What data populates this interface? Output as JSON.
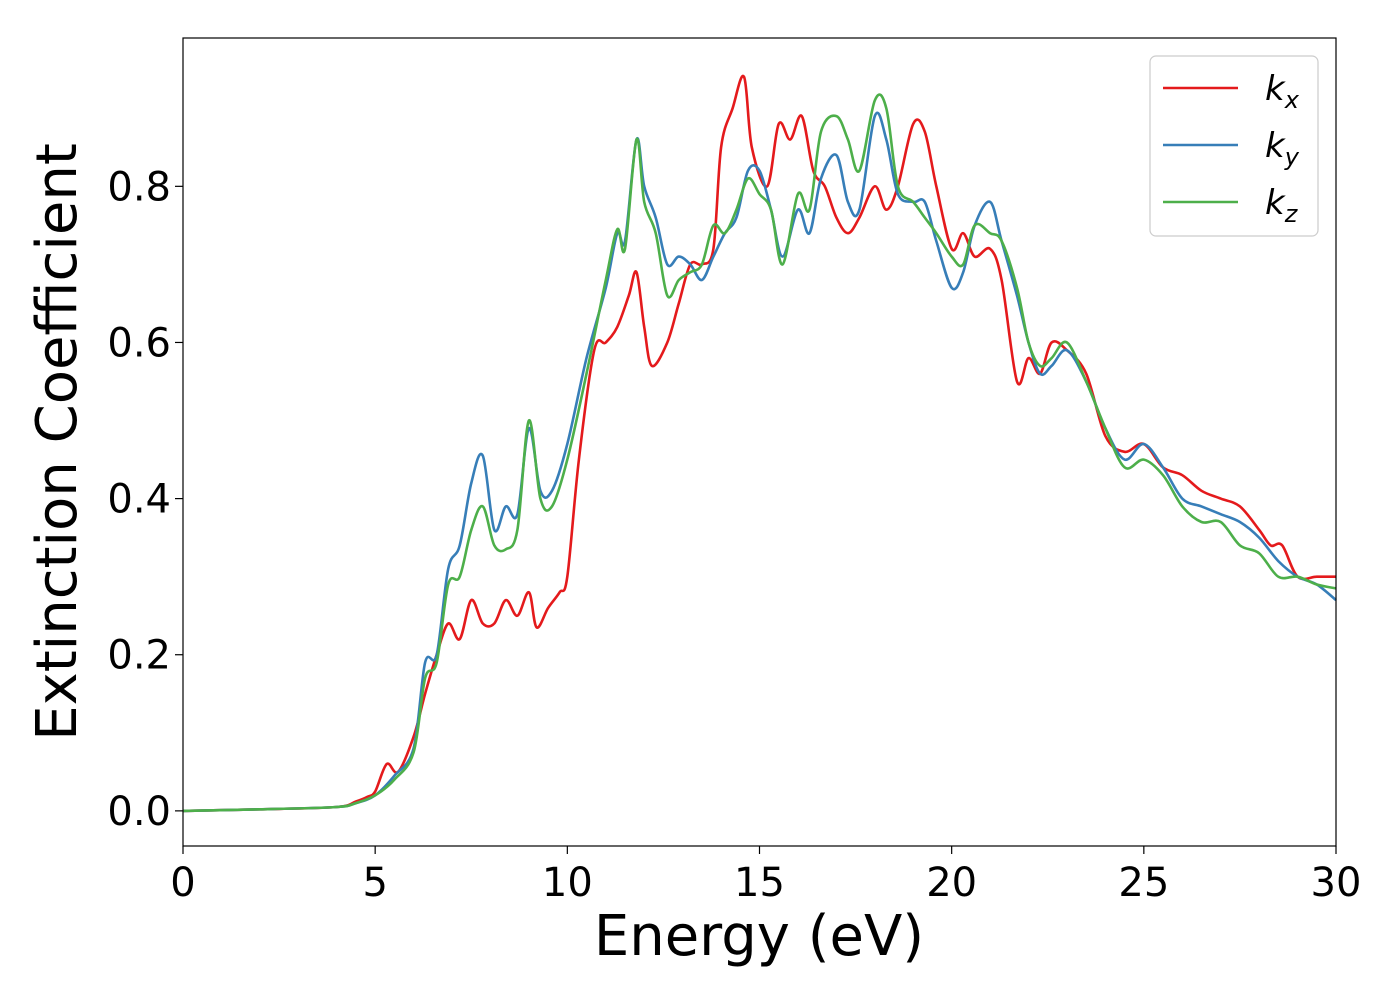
{
  "chart_data": {
    "type": "line",
    "xlabel": "Energy (eV)",
    "ylabel": "Extinction Coefficient",
    "xlim": [
      0,
      30
    ],
    "ylim": [
      -0.045,
      0.99
    ],
    "xticks": [
      "0",
      "5",
      "10",
      "15",
      "20",
      "25",
      "30"
    ],
    "yticks": [
      "0.0",
      "0.2",
      "0.4",
      "0.6",
      "0.8"
    ],
    "grid": false,
    "legend_position": "top-right",
    "series": [
      {
        "name": "k",
        "subscript": "x",
        "color": "#e41a1c",
        "points": [
          [
            0,
            0
          ],
          [
            2,
            0.002
          ],
          [
            4,
            0.005
          ],
          [
            4.5,
            0.012
          ],
          [
            4.8,
            0.018
          ],
          [
            5,
            0.025
          ],
          [
            5.3,
            0.06
          ],
          [
            5.6,
            0.05
          ],
          [
            6,
            0.095
          ],
          [
            6.3,
            0.15
          ],
          [
            6.6,
            0.2
          ],
          [
            6.9,
            0.24
          ],
          [
            7.2,
            0.22
          ],
          [
            7.5,
            0.27
          ],
          [
            7.8,
            0.24
          ],
          [
            8.1,
            0.24
          ],
          [
            8.4,
            0.27
          ],
          [
            8.7,
            0.25
          ],
          [
            9,
            0.28
          ],
          [
            9.2,
            0.235
          ],
          [
            9.5,
            0.26
          ],
          [
            9.8,
            0.28
          ],
          [
            10,
            0.3
          ],
          [
            10.3,
            0.45
          ],
          [
            10.7,
            0.59
          ],
          [
            11,
            0.6
          ],
          [
            11.3,
            0.62
          ],
          [
            11.6,
            0.66
          ],
          [
            11.8,
            0.69
          ],
          [
            12,
            0.62
          ],
          [
            12.2,
            0.57
          ],
          [
            12.6,
            0.6
          ],
          [
            12.9,
            0.65
          ],
          [
            13.2,
            0.7
          ],
          [
            13.5,
            0.7
          ],
          [
            13.8,
            0.72
          ],
          [
            14,
            0.85
          ],
          [
            14.3,
            0.9
          ],
          [
            14.6,
            0.94
          ],
          [
            14.8,
            0.85
          ],
          [
            15.2,
            0.8
          ],
          [
            15.5,
            0.88
          ],
          [
            15.8,
            0.86
          ],
          [
            16.1,
            0.89
          ],
          [
            16.4,
            0.82
          ],
          [
            16.7,
            0.8
          ],
          [
            17,
            0.76
          ],
          [
            17.3,
            0.74
          ],
          [
            17.6,
            0.76
          ],
          [
            18,
            0.8
          ],
          [
            18.3,
            0.77
          ],
          [
            18.6,
            0.8
          ],
          [
            19,
            0.88
          ],
          [
            19.3,
            0.87
          ],
          [
            19.6,
            0.8
          ],
          [
            20,
            0.72
          ],
          [
            20.3,
            0.74
          ],
          [
            20.6,
            0.71
          ],
          [
            21,
            0.72
          ],
          [
            21.3,
            0.68
          ],
          [
            21.7,
            0.55
          ],
          [
            22,
            0.58
          ],
          [
            22.3,
            0.56
          ],
          [
            22.6,
            0.6
          ],
          [
            23,
            0.59
          ],
          [
            23.5,
            0.56
          ],
          [
            24,
            0.48
          ],
          [
            24.5,
            0.46
          ],
          [
            25,
            0.47
          ],
          [
            25.5,
            0.44
          ],
          [
            26,
            0.43
          ],
          [
            26.5,
            0.41
          ],
          [
            27,
            0.4
          ],
          [
            27.5,
            0.39
          ],
          [
            28,
            0.36
          ],
          [
            28.3,
            0.34
          ],
          [
            28.6,
            0.34
          ],
          [
            29,
            0.3
          ],
          [
            29.5,
            0.3
          ],
          [
            30,
            0.3
          ]
        ]
      },
      {
        "name": "k",
        "subscript": "y",
        "color": "#377eb8",
        "points": [
          [
            0,
            0
          ],
          [
            2,
            0.002
          ],
          [
            4,
            0.005
          ],
          [
            4.5,
            0.01
          ],
          [
            5,
            0.02
          ],
          [
            5.5,
            0.045
          ],
          [
            6,
            0.08
          ],
          [
            6.3,
            0.19
          ],
          [
            6.6,
            0.2
          ],
          [
            6.9,
            0.31
          ],
          [
            7.2,
            0.34
          ],
          [
            7.5,
            0.42
          ],
          [
            7.8,
            0.455
          ],
          [
            8.1,
            0.36
          ],
          [
            8.4,
            0.39
          ],
          [
            8.7,
            0.38
          ],
          [
            9,
            0.49
          ],
          [
            9.3,
            0.41
          ],
          [
            9.6,
            0.41
          ],
          [
            10,
            0.47
          ],
          [
            10.5,
            0.58
          ],
          [
            11,
            0.67
          ],
          [
            11.3,
            0.74
          ],
          [
            11.5,
            0.73
          ],
          [
            11.8,
            0.86
          ],
          [
            12,
            0.8
          ],
          [
            12.3,
            0.76
          ],
          [
            12.6,
            0.7
          ],
          [
            12.9,
            0.71
          ],
          [
            13.2,
            0.7
          ],
          [
            13.5,
            0.68
          ],
          [
            13.8,
            0.71
          ],
          [
            14.1,
            0.74
          ],
          [
            14.4,
            0.76
          ],
          [
            14.7,
            0.82
          ],
          [
            15,
            0.82
          ],
          [
            15.3,
            0.77
          ],
          [
            15.6,
            0.71
          ],
          [
            16,
            0.77
          ],
          [
            16.3,
            0.74
          ],
          [
            16.6,
            0.81
          ],
          [
            17,
            0.84
          ],
          [
            17.3,
            0.78
          ],
          [
            17.6,
            0.77
          ],
          [
            18,
            0.89
          ],
          [
            18.3,
            0.86
          ],
          [
            18.6,
            0.79
          ],
          [
            19,
            0.78
          ],
          [
            19.3,
            0.78
          ],
          [
            19.6,
            0.73
          ],
          [
            20,
            0.67
          ],
          [
            20.3,
            0.69
          ],
          [
            20.6,
            0.75
          ],
          [
            21,
            0.78
          ],
          [
            21.3,
            0.73
          ],
          [
            21.7,
            0.66
          ],
          [
            22,
            0.6
          ],
          [
            22.3,
            0.56
          ],
          [
            22.6,
            0.57
          ],
          [
            23,
            0.59
          ],
          [
            23.5,
            0.55
          ],
          [
            24,
            0.49
          ],
          [
            24.5,
            0.45
          ],
          [
            25,
            0.47
          ],
          [
            25.5,
            0.44
          ],
          [
            26,
            0.4
          ],
          [
            26.5,
            0.39
          ],
          [
            27,
            0.38
          ],
          [
            27.5,
            0.37
          ],
          [
            28,
            0.35
          ],
          [
            28.5,
            0.32
          ],
          [
            29,
            0.3
          ],
          [
            29.5,
            0.29
          ],
          [
            30,
            0.27
          ]
        ]
      },
      {
        "name": "k",
        "subscript": "z",
        "color": "#4daf4a",
        "points": [
          [
            0,
            0
          ],
          [
            2,
            0.002
          ],
          [
            4,
            0.005
          ],
          [
            4.5,
            0.01
          ],
          [
            5,
            0.02
          ],
          [
            5.5,
            0.04
          ],
          [
            6,
            0.075
          ],
          [
            6.3,
            0.17
          ],
          [
            6.6,
            0.19
          ],
          [
            6.9,
            0.29
          ],
          [
            7.2,
            0.3
          ],
          [
            7.5,
            0.36
          ],
          [
            7.8,
            0.39
          ],
          [
            8.1,
            0.34
          ],
          [
            8.4,
            0.335
          ],
          [
            8.7,
            0.36
          ],
          [
            9,
            0.5
          ],
          [
            9.3,
            0.4
          ],
          [
            9.6,
            0.39
          ],
          [
            10,
            0.45
          ],
          [
            10.5,
            0.56
          ],
          [
            11,
            0.68
          ],
          [
            11.3,
            0.745
          ],
          [
            11.5,
            0.72
          ],
          [
            11.8,
            0.86
          ],
          [
            12,
            0.78
          ],
          [
            12.3,
            0.74
          ],
          [
            12.6,
            0.66
          ],
          [
            12.9,
            0.68
          ],
          [
            13.2,
            0.69
          ],
          [
            13.5,
            0.7
          ],
          [
            13.8,
            0.75
          ],
          [
            14.1,
            0.74
          ],
          [
            14.4,
            0.77
          ],
          [
            14.7,
            0.81
          ],
          [
            15,
            0.79
          ],
          [
            15.3,
            0.77
          ],
          [
            15.6,
            0.7
          ],
          [
            16,
            0.79
          ],
          [
            16.3,
            0.77
          ],
          [
            16.6,
            0.87
          ],
          [
            17,
            0.89
          ],
          [
            17.3,
            0.86
          ],
          [
            17.6,
            0.82
          ],
          [
            18,
            0.91
          ],
          [
            18.3,
            0.9
          ],
          [
            18.6,
            0.8
          ],
          [
            19,
            0.78
          ],
          [
            19.3,
            0.76
          ],
          [
            19.6,
            0.74
          ],
          [
            20,
            0.71
          ],
          [
            20.3,
            0.7
          ],
          [
            20.6,
            0.75
          ],
          [
            21,
            0.74
          ],
          [
            21.3,
            0.73
          ],
          [
            21.7,
            0.67
          ],
          [
            22,
            0.6
          ],
          [
            22.3,
            0.57
          ],
          [
            22.6,
            0.58
          ],
          [
            23,
            0.6
          ],
          [
            23.5,
            0.55
          ],
          [
            24,
            0.49
          ],
          [
            24.5,
            0.44
          ],
          [
            25,
            0.45
          ],
          [
            25.5,
            0.43
          ],
          [
            26,
            0.39
          ],
          [
            26.5,
            0.37
          ],
          [
            27,
            0.37
          ],
          [
            27.5,
            0.34
          ],
          [
            28,
            0.33
          ],
          [
            28.5,
            0.3
          ],
          [
            29,
            0.3
          ],
          [
            29.5,
            0.29
          ],
          [
            30,
            0.285
          ]
        ]
      }
    ]
  }
}
